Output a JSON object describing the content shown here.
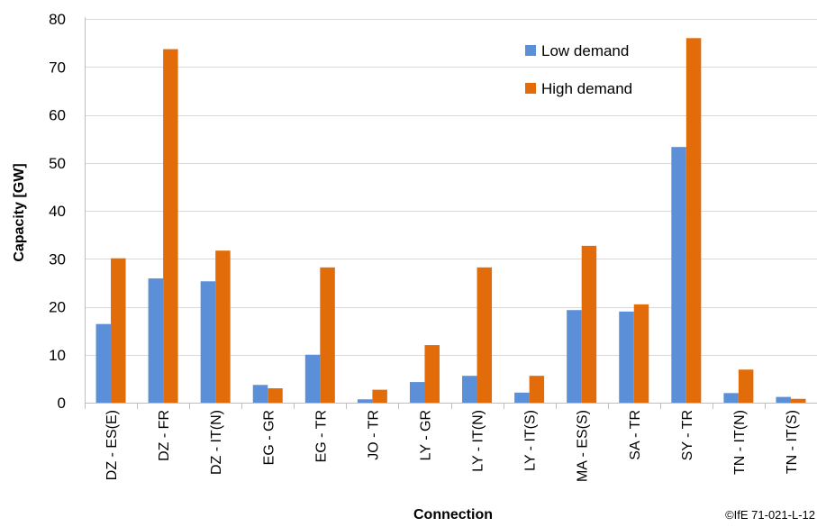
{
  "chart_data": {
    "type": "bar",
    "categories": [
      "DZ - ES(E)",
      "DZ - FR",
      "DZ - IT(N)",
      "EG - GR",
      "EG - TR",
      "JO - TR",
      "LY - GR",
      "LY - IT(N)",
      "LY - IT(S)",
      "MA - ES(S)",
      "SA - TR",
      "SY - TR",
      "TN - IT(N)",
      "TN - IT(S)"
    ],
    "series": [
      {
        "name": "Low demand",
        "color": "#5B8FD8",
        "values": [
          16.4,
          25.9,
          25.3,
          3.7,
          10.0,
          0.7,
          4.3,
          5.6,
          2.1,
          19.3,
          19.0,
          53.3,
          2.0,
          1.2
        ]
      },
      {
        "name": "High demand",
        "color": "#E36C0A",
        "values": [
          30.1,
          73.7,
          31.7,
          3.0,
          28.2,
          2.7,
          12.0,
          28.2,
          5.6,
          32.7,
          20.5,
          76.0,
          6.9,
          0.8
        ]
      }
    ],
    "title": "",
    "xlabel": "Connection",
    "ylabel": "Capacity [GW]",
    "ylim": [
      0,
      80
    ],
    "yticks": [
      0,
      10,
      20,
      30,
      40,
      50,
      60,
      70,
      80
    ],
    "grid": true,
    "legend_position": "top-right"
  },
  "copyright": "©IfE 71-021-L-12"
}
